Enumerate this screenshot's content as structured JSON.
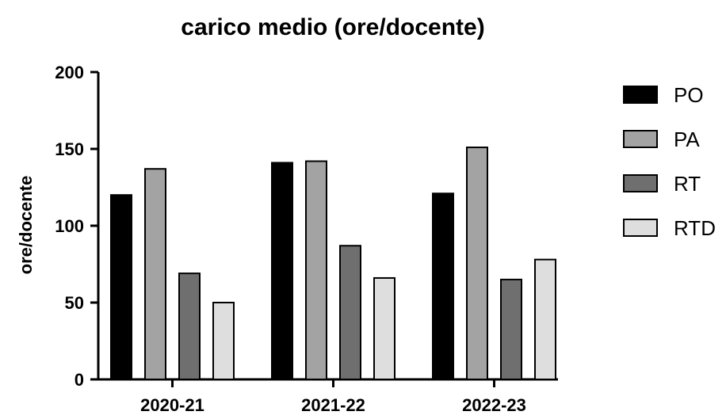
{
  "chart_data": {
    "type": "bar",
    "title": "carico medio (ore/docente)",
    "xlabel": "",
    "ylabel": "ore/docente",
    "ylim": [
      0,
      200
    ],
    "yticks": [
      0,
      50,
      100,
      150,
      200
    ],
    "categories": [
      "2020-21",
      "2021-22",
      "2022-23"
    ],
    "series": [
      {
        "name": "PO",
        "color": "#000000",
        "values": [
          120,
          141,
          121
        ]
      },
      {
        "name": "PA",
        "color": "#a3a3a3",
        "values": [
          137,
          142,
          151
        ]
      },
      {
        "name": "RT",
        "color": "#6f6f6f",
        "values": [
          69,
          87,
          65
        ]
      },
      {
        "name": "RTD",
        "color": "#dedede",
        "values": [
          50,
          66,
          78
        ]
      }
    ],
    "legend_position": "right",
    "grid": false
  }
}
